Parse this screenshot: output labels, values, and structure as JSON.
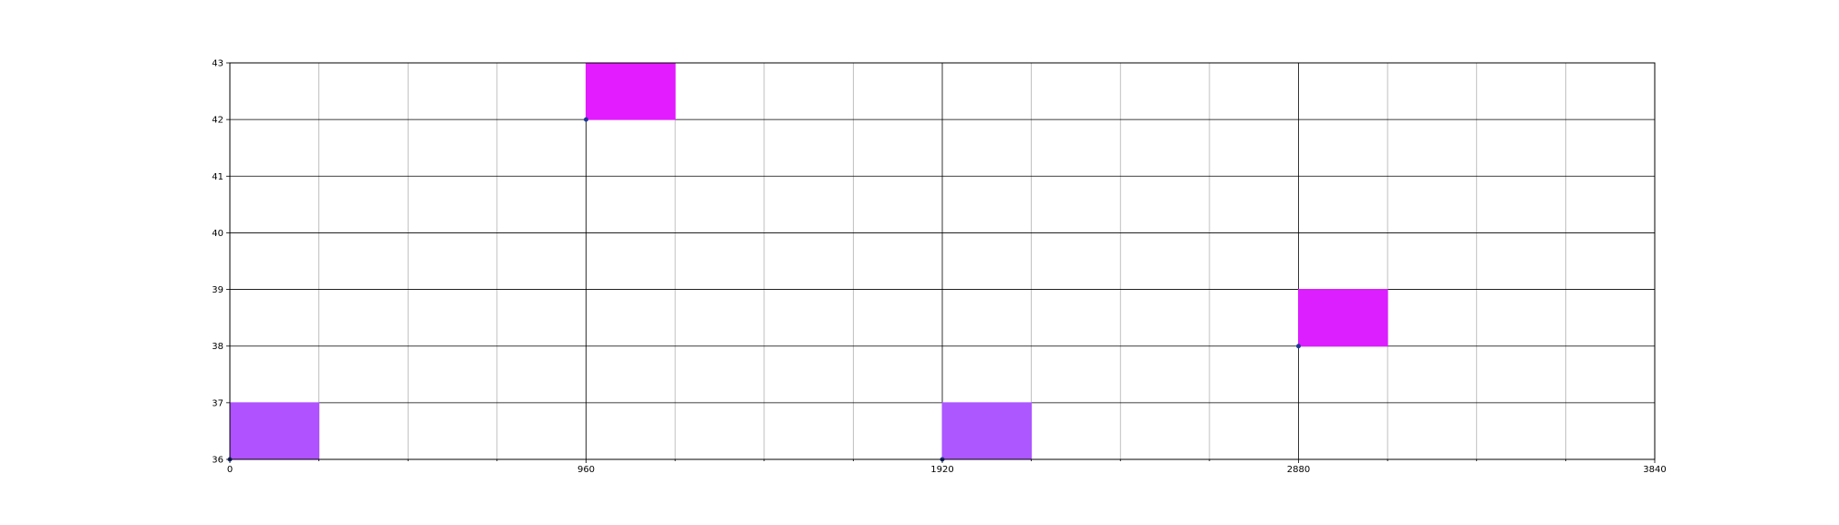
{
  "chart_data": {
    "type": "scatter",
    "title": "",
    "xlabel": "",
    "ylabel": "",
    "xlim": [
      0,
      3840
    ],
    "ylim": [
      36,
      43
    ],
    "x_major_ticks": [
      0,
      960,
      1920,
      2880,
      3840
    ],
    "x_minor_ticks": [
      240,
      480,
      720,
      1200,
      1440,
      1680,
      2160,
      2400,
      2640,
      3120,
      3360,
      3600
    ],
    "y_ticks": [
      36,
      37,
      38,
      39,
      40,
      41,
      42,
      43
    ],
    "x_tick_labels": [
      "0",
      "960",
      "1920",
      "2880",
      "3840"
    ],
    "y_tick_labels": [
      "36",
      "37",
      "38",
      "39",
      "40",
      "41",
      "42",
      "43"
    ],
    "grid": true,
    "points": [
      {
        "x": 0,
        "y": 36
      },
      {
        "x": 960,
        "y": 42
      },
      {
        "x": 1920,
        "y": 36
      },
      {
        "x": 2880,
        "y": 38
      }
    ],
    "rectangles": [
      {
        "x0": 0,
        "x1": 240,
        "y0": 36,
        "y1": 37,
        "color": "#b052ff"
      },
      {
        "x0": 960,
        "x1": 1200,
        "y0": 42,
        "y1": 43,
        "color": "#e31cff"
      },
      {
        "x0": 1920,
        "x1": 2160,
        "y0": 36,
        "y1": 37,
        "color": "#ac57ff"
      },
      {
        "x0": 2880,
        "x1": 3120,
        "y0": 38,
        "y1": 39,
        "color": "#dc1fff"
      }
    ],
    "colors": {
      "point": "#1f3a93",
      "major_grid": "#000000",
      "minor_grid": "#b0b0b0",
      "axes": "#000000"
    }
  }
}
